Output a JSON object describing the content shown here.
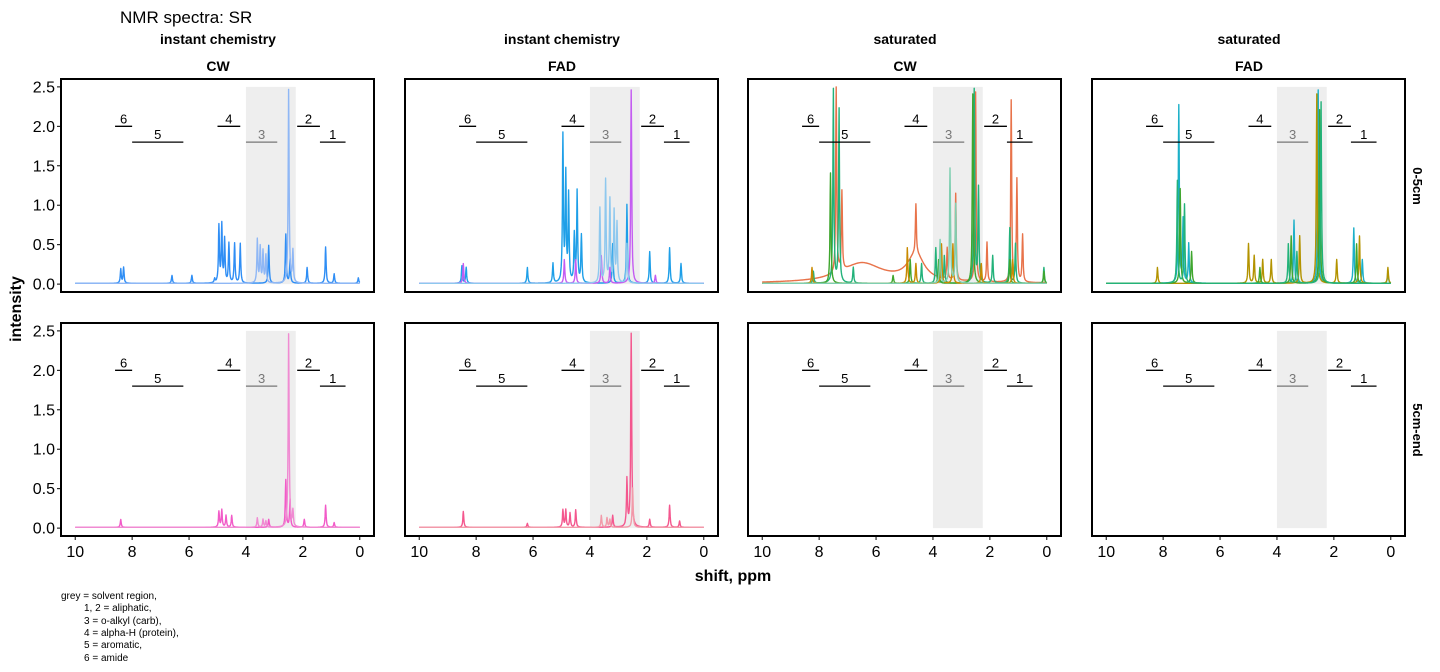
{
  "title": "NMR spectra: SR",
  "xlabel": "shift, ppm",
  "ylabel": "intensity",
  "note_lines": [
    "grey = solvent region,",
    "1, 2 = aliphatic,",
    "3 = o-alkyl (carb),",
    "4 = alpha-H (protein),",
    "5 = aromatic,",
    "6 = amide"
  ],
  "columns": [
    {
      "strip1": "instant chemistry",
      "strip2": "CW"
    },
    {
      "strip1": "instant chemistry",
      "strip2": "FAD"
    },
    {
      "strip1": "saturated",
      "strip2": "CW"
    },
    {
      "strip1": "saturated",
      "strip2": "FAD"
    }
  ],
  "rows": [
    "0-5cm",
    "5cm-end"
  ],
  "colors": {
    "ic_cw_top": [
      "#2f8ef5",
      "#4a7fe8",
      "#8fb7f5"
    ],
    "ic_fad_top": [
      "#1e9fe8",
      "#c45cf2",
      "#8ec8ee"
    ],
    "sat_cw_top": [
      "#e8734a",
      "#22b27a",
      "#3fa62e",
      "#c98a00",
      "#7fcfb1"
    ],
    "sat_fad_top": [
      "#1cb0c8",
      "#b39300",
      "#3fa62e",
      "#22b27a"
    ],
    "ic_bottom": [
      "#f25ac8",
      "#f08bd2"
    ],
    "ic_fad_bottom": [
      "#f4578e",
      "#f29aa9"
    ],
    "solvent": "#eeeeee"
  },
  "chart_data": {
    "type": "line",
    "x_axis": {
      "label": "shift, ppm",
      "reversed": true,
      "lim": [
        10.5,
        -0.5
      ],
      "ticks": [
        10,
        8,
        6,
        4,
        2,
        0
      ]
    },
    "y_axis": {
      "label": "intensity",
      "lim": [
        -0.1,
        2.6
      ],
      "ticks": [
        0.0,
        0.5,
        1.0,
        1.5,
        2.0,
        2.5
      ],
      "tick_labels": [
        "0.0",
        "0.5",
        "1.0",
        "1.5",
        "2.0",
        "2.5"
      ]
    },
    "solvent_region": [
      4.0,
      2.25
    ],
    "regions": [
      {
        "label": "6",
        "x": [
          8.6,
          8.0
        ],
        "y": 2.0
      },
      {
        "label": "5",
        "x": [
          8.0,
          6.2
        ],
        "y": 1.8
      },
      {
        "label": "4",
        "x": [
          5.0,
          4.2
        ],
        "y": 2.0
      },
      {
        "label": "3",
        "x": [
          4.0,
          2.9
        ],
        "y": 1.8,
        "grey": true
      },
      {
        "label": "2",
        "x": [
          2.2,
          1.4
        ],
        "y": 2.0
      },
      {
        "label": "1",
        "x": [
          1.4,
          0.5
        ],
        "y": 1.8
      }
    ],
    "panels": [
      {
        "row": "0-5cm",
        "col": 0,
        "series": [
          {
            "color_key": "ic_cw_top",
            "idx": 0,
            "peaks": [
              [
                8.4,
                0.18
              ],
              [
                8.3,
                0.2
              ],
              [
                6.6,
                0.1
              ],
              [
                5.9,
                0.1
              ],
              [
                5.1,
                0.05
              ],
              [
                4.95,
                0.72
              ],
              [
                4.85,
                0.73
              ],
              [
                4.75,
                0.55
              ],
              [
                4.6,
                0.5
              ],
              [
                4.4,
                0.5
              ],
              [
                4.2,
                0.5
              ],
              [
                3.2,
                0.48
              ],
              [
                2.6,
                0.62
              ],
              [
                2.45,
                0.3
              ],
              [
                1.85,
                0.2
              ],
              [
                1.2,
                0.46
              ],
              [
                0.9,
                0.12
              ],
              [
                0.05,
                0.07
              ]
            ]
          },
          {
            "color_key": "ic_cw_top",
            "idx": 2,
            "peaks": [
              [
                3.6,
                0.55
              ],
              [
                3.5,
                0.45
              ],
              [
                3.4,
                0.4
              ],
              [
                3.3,
                0.35
              ],
              [
                2.5,
                2.45
              ],
              [
                2.35,
                0.4
              ]
            ]
          }
        ]
      },
      {
        "row": "0-5cm",
        "col": 1,
        "series": [
          {
            "color_key": "ic_fad_top",
            "idx": 0,
            "peaks": [
              [
                8.5,
                0.22
              ],
              [
                8.35,
                0.2
              ],
              [
                6.2,
                0.2
              ],
              [
                5.3,
                0.25
              ],
              [
                4.95,
                1.85
              ],
              [
                4.85,
                1.35
              ],
              [
                4.75,
                1.1
              ],
              [
                4.55,
                0.6
              ],
              [
                4.45,
                1.15
              ],
              [
                4.3,
                0.6
              ],
              [
                3.2,
                0.5
              ],
              [
                2.7,
                1.0
              ],
              [
                1.9,
                0.4
              ],
              [
                1.2,
                0.45
              ],
              [
                0.8,
                0.25
              ]
            ]
          },
          {
            "color_key": "ic_fad_top",
            "idx": 1,
            "peaks": [
              [
                8.45,
                0.25
              ],
              [
                4.9,
                0.3
              ],
              [
                4.5,
                0.3
              ],
              [
                3.6,
                0.35
              ],
              [
                3.3,
                0.2
              ],
              [
                2.55,
                2.45
              ],
              [
                1.7,
                0.1
              ]
            ]
          },
          {
            "color_key": "ic_fad_top",
            "idx": 2,
            "peaks": [
              [
                3.65,
                0.95
              ],
              [
                3.45,
                1.3
              ],
              [
                3.3,
                1.05
              ],
              [
                3.15,
                0.9
              ],
              [
                3.05,
                0.75
              ],
              [
                2.7,
                0.5
              ]
            ]
          }
        ]
      },
      {
        "row": "0-5cm",
        "col": 2,
        "series": [
          {
            "color_key": "sat_cw_top",
            "idx": 0,
            "peaks": [
              [
                7.4,
                2.4
              ],
              [
                7.2,
                1.0
              ],
              [
                4.6,
                0.62
              ],
              [
                3.5,
                0.4
              ],
              [
                3.2,
                1.1
              ],
              [
                2.5,
                2.4
              ],
              [
                2.1,
                0.5
              ],
              [
                1.25,
                2.3
              ],
              [
                1.05,
                1.3
              ],
              [
                0.85,
                0.6
              ]
            ],
            "broad": true
          },
          {
            "color_key": "sat_cw_top",
            "idx": 1,
            "peaks": [
              [
                8.2,
                0.15
              ],
              [
                7.5,
                2.45
              ],
              [
                7.3,
                2.2
              ],
              [
                6.8,
                0.2
              ],
              [
                4.4,
                0.25
              ],
              [
                3.9,
                0.45
              ],
              [
                3.6,
                0.35
              ],
              [
                2.55,
                2.45
              ],
              [
                2.4,
                1.2
              ],
              [
                1.9,
                0.35
              ],
              [
                1.3,
                0.7
              ],
              [
                1.1,
                0.5
              ],
              [
                0.1,
                0.2
              ]
            ]
          },
          {
            "color_key": "sat_cw_top",
            "idx": 2,
            "peaks": [
              [
                7.6,
                1.4
              ],
              [
                5.4,
                0.1
              ],
              [
                4.8,
                0.3
              ],
              [
                3.8,
                0.3
              ],
              [
                2.6,
                2.4
              ],
              [
                1.3,
                0.3
              ],
              [
                0.1,
                0.15
              ]
            ]
          },
          {
            "color_key": "sat_cw_top",
            "idx": 3,
            "peaks": [
              [
                8.25,
                0.2
              ],
              [
                4.9,
                0.45
              ],
              [
                4.6,
                0.25
              ],
              [
                3.7,
                0.5
              ],
              [
                3.3,
                0.5
              ],
              [
                2.3,
                0.25
              ],
              [
                1.2,
                0.3
              ]
            ]
          },
          {
            "color_key": "sat_cw_top",
            "idx": 4,
            "peaks": [
              [
                3.75,
                0.55
              ],
              [
                3.4,
                1.45
              ],
              [
                3.2,
                1.0
              ]
            ]
          }
        ]
      },
      {
        "row": "0-5cm",
        "col": 3,
        "series": [
          {
            "color_key": "sat_fad_top",
            "idx": 0,
            "peaks": [
              [
                7.45,
                2.25
              ],
              [
                7.3,
                0.8
              ],
              [
                7.1,
                0.5
              ],
              [
                3.4,
                0.8
              ],
              [
                2.55,
                2.45
              ],
              [
                1.3,
                0.7
              ],
              [
                1.0,
                0.3
              ],
              [
                0.1,
                0.15
              ]
            ]
          },
          {
            "color_key": "sat_fad_top",
            "idx": 1,
            "peaks": [
              [
                8.2,
                0.2
              ],
              [
                5.0,
                0.5
              ],
              [
                4.8,
                0.35
              ],
              [
                4.5,
                0.3
              ],
              [
                4.2,
                0.3
              ],
              [
                3.2,
                0.6
              ],
              [
                2.6,
                2.4
              ],
              [
                1.9,
                0.3
              ],
              [
                1.1,
                0.6
              ],
              [
                0.1,
                0.2
              ]
            ]
          },
          {
            "color_key": "sat_fad_top",
            "idx": 2,
            "peaks": [
              [
                7.4,
                1.2
              ],
              [
                7.0,
                0.4
              ],
              [
                4.6,
                0.2
              ],
              [
                3.5,
                0.6
              ],
              [
                2.5,
                2.2
              ],
              [
                1.2,
                0.5
              ]
            ]
          },
          {
            "color_key": "sat_fad_top",
            "idx": 3,
            "peaks": [
              [
                7.5,
                1.3
              ],
              [
                7.25,
                1.0
              ],
              [
                3.6,
                0.5
              ],
              [
                3.3,
                0.4
              ],
              [
                2.45,
                2.3
              ]
            ]
          }
        ]
      },
      {
        "row": "5cm-end",
        "col": 0,
        "series": [
          {
            "color_key": "ic_bottom",
            "idx": 0,
            "peaks": [
              [
                8.4,
                0.1
              ],
              [
                4.95,
                0.2
              ],
              [
                4.85,
                0.22
              ],
              [
                4.7,
                0.15
              ],
              [
                4.5,
                0.15
              ],
              [
                3.2,
                0.1
              ],
              [
                2.6,
                0.6
              ],
              [
                2.45,
                0.35
              ],
              [
                1.95,
                0.1
              ],
              [
                1.2,
                0.28
              ],
              [
                0.9,
                0.06
              ]
            ]
          },
          {
            "color_key": "ic_bottom",
            "idx": 1,
            "peaks": [
              [
                3.6,
                0.12
              ],
              [
                3.4,
                0.1
              ],
              [
                3.3,
                0.08
              ],
              [
                2.5,
                2.45
              ],
              [
                2.35,
                0.2
              ]
            ]
          }
        ]
      },
      {
        "row": "5cm-end",
        "col": 1,
        "series": [
          {
            "color_key": "ic_fad_bottom",
            "idx": 0,
            "peaks": [
              [
                8.45,
                0.2
              ],
              [
                6.2,
                0.05
              ],
              [
                4.95,
                0.22
              ],
              [
                4.85,
                0.22
              ],
              [
                4.7,
                0.18
              ],
              [
                4.5,
                0.22
              ],
              [
                3.2,
                0.15
              ],
              [
                2.7,
                0.6
              ],
              [
                2.55,
                2.45
              ],
              [
                1.9,
                0.1
              ],
              [
                1.2,
                0.28
              ],
              [
                0.85,
                0.08
              ]
            ]
          },
          {
            "color_key": "ic_fad_bottom",
            "idx": 1,
            "peaks": [
              [
                3.6,
                0.15
              ],
              [
                3.4,
                0.12
              ],
              [
                3.3,
                0.1
              ],
              [
                2.5,
                0.5
              ]
            ]
          }
        ]
      },
      {
        "row": "5cm-end",
        "col": 2,
        "series": []
      },
      {
        "row": "5cm-end",
        "col": 3,
        "series": []
      }
    ]
  }
}
